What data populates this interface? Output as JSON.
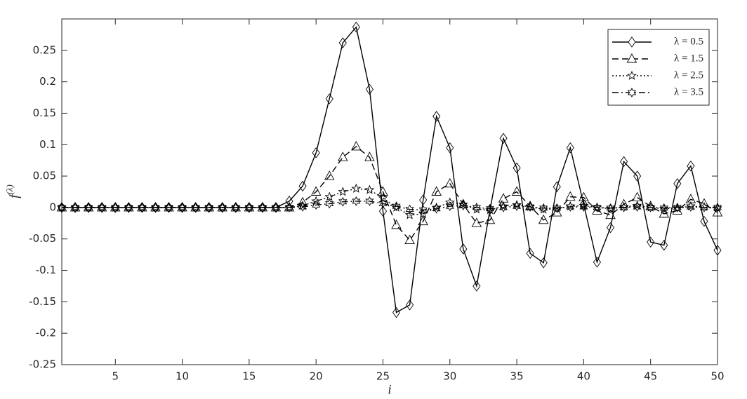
{
  "chart_data": {
    "type": "line",
    "xlabel": "i",
    "ylabel": {
      "base": "f",
      "superscript": "(λ)"
    },
    "x": [
      1,
      2,
      3,
      4,
      5,
      6,
      7,
      8,
      9,
      10,
      11,
      12,
      13,
      14,
      15,
      16,
      17,
      18,
      19,
      20,
      21,
      22,
      23,
      24,
      25,
      26,
      27,
      28,
      29,
      30,
      31,
      32,
      33,
      34,
      35,
      36,
      37,
      38,
      39,
      40,
      41,
      42,
      43,
      44,
      45,
      46,
      47,
      48,
      49,
      50
    ],
    "xlim": [
      1,
      50
    ],
    "xticks": [
      5,
      10,
      15,
      20,
      25,
      30,
      35,
      40,
      45,
      50
    ],
    "ylim": [
      -0.25,
      0.3
    ],
    "yticks": [
      -0.25,
      -0.2,
      -0.15,
      -0.1,
      -0.05,
      0,
      0.05,
      0.1,
      0.15,
      0.2,
      0.25
    ],
    "legend": "top-right",
    "series": [
      {
        "name": "λ = 0.5",
        "color": "#000000",
        "dash": "solid",
        "marker": "diamond",
        "values": [
          0,
          0,
          0,
          0,
          0,
          0,
          0,
          0,
          0,
          0,
          0,
          0,
          0,
          0,
          0,
          0,
          0,
          0.01,
          0.034,
          0.087,
          0.173,
          0.262,
          0.287,
          0.188,
          -0.006,
          -0.167,
          -0.155,
          0.012,
          0.145,
          0.095,
          -0.066,
          -0.125,
          -0.003,
          0.11,
          0.063,
          -0.073,
          -0.088,
          0.033,
          0.095,
          0.005,
          -0.087,
          -0.032,
          0.073,
          0.05,
          -0.055,
          -0.06,
          0.038,
          0.066,
          -0.022,
          -0.068
        ]
      },
      {
        "name": "λ = 1.5",
        "color": "#000000",
        "dash": "dashed",
        "marker": "triangle",
        "values": [
          0,
          0,
          0,
          0,
          0,
          0,
          0,
          0,
          0,
          0,
          0,
          0,
          0,
          0,
          0,
          0,
          0,
          0,
          0.008,
          0.025,
          0.05,
          0.08,
          0.097,
          0.08,
          0.025,
          -0.028,
          -0.052,
          -0.022,
          0.025,
          0.038,
          0.005,
          -0.025,
          -0.02,
          0.014,
          0.025,
          0.002,
          -0.02,
          -0.008,
          0.017,
          0.016,
          -0.005,
          -0.012,
          0.005,
          0.016,
          0.002,
          -0.01,
          -0.005,
          0.013,
          0.006,
          -0.008
        ]
      },
      {
        "name": "λ = 2.5",
        "color": "#000000",
        "dash": "dotted",
        "marker": "star",
        "values": [
          0,
          0,
          0,
          0,
          0,
          0,
          0,
          0,
          0,
          0,
          0,
          0,
          0,
          0,
          0,
          0,
          0,
          0,
          0.003,
          0.01,
          0.017,
          0.025,
          0.03,
          0.028,
          0.015,
          0,
          -0.012,
          -0.01,
          0,
          0.008,
          0.005,
          -0.003,
          -0.004,
          0.002,
          0.004,
          0.001,
          -0.003,
          -0.002,
          0.002,
          0.003,
          0,
          -0.002,
          0.001,
          0.003,
          0,
          -0.002,
          -0.001,
          0.002,
          0.001,
          -0.001
        ]
      },
      {
        "name": "λ = 3.5",
        "color": "#000000",
        "dash": "dashdot",
        "marker": "hexagram",
        "values": [
          0,
          0,
          0,
          0,
          0,
          0,
          0,
          0,
          0,
          0,
          0,
          0,
          0,
          0,
          0,
          0,
          0,
          0,
          0.001,
          0.004,
          0.006,
          0.009,
          0.01,
          0.01,
          0.006,
          0.002,
          -0.003,
          -0.004,
          -0.002,
          0.002,
          0.003,
          0,
          -0.002,
          0,
          0.002,
          0.001,
          -0.001,
          -0.001,
          0.001,
          0.001,
          0,
          -0.001,
          0,
          0.001,
          0,
          -0.001,
          0,
          0.001,
          0,
          0
        ]
      }
    ]
  }
}
